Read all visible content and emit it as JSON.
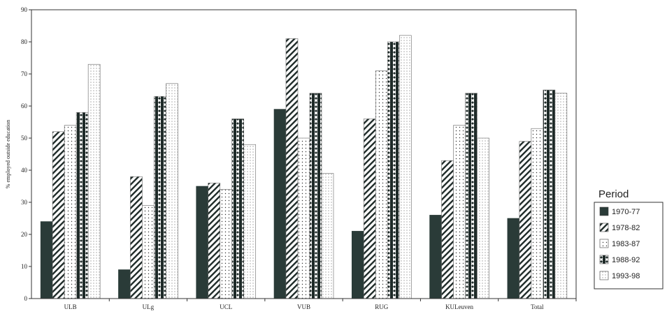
{
  "chart_data": {
    "type": "bar",
    "categories": [
      "ULB",
      "ULg",
      "UCL",
      "VUB",
      "RUG",
      "KULeuven",
      "Total"
    ],
    "series": [
      {
        "name": "1970-77",
        "values": [
          24,
          9,
          35,
          59,
          21,
          26,
          25
        ]
      },
      {
        "name": "1978-82",
        "values": [
          52,
          38,
          36,
          81,
          56,
          43,
          49
        ]
      },
      {
        "name": "1983-87",
        "values": [
          54,
          29,
          34,
          50,
          71,
          54,
          53
        ]
      },
      {
        "name": "1988-92",
        "values": [
          58,
          63,
          56,
          64,
          80,
          64,
          65
        ]
      },
      {
        "name": "1993-98",
        "values": [
          73,
          67,
          48,
          39,
          82,
          50,
          64
        ]
      }
    ],
    "yticks": [
      "0",
      "10",
      "20",
      "30",
      "40",
      "50",
      "60",
      "70",
      "80",
      "90"
    ],
    "ylim": [
      0,
      90
    ],
    "ylabel": "% employed outside education",
    "xlabel": "",
    "title": "",
    "legend_title": "Period",
    "legend_position": "right",
    "grid": false,
    "colors": {
      "solid": "#2a3b38",
      "pattern": "#1e2a28",
      "axis": "#333333"
    }
  }
}
